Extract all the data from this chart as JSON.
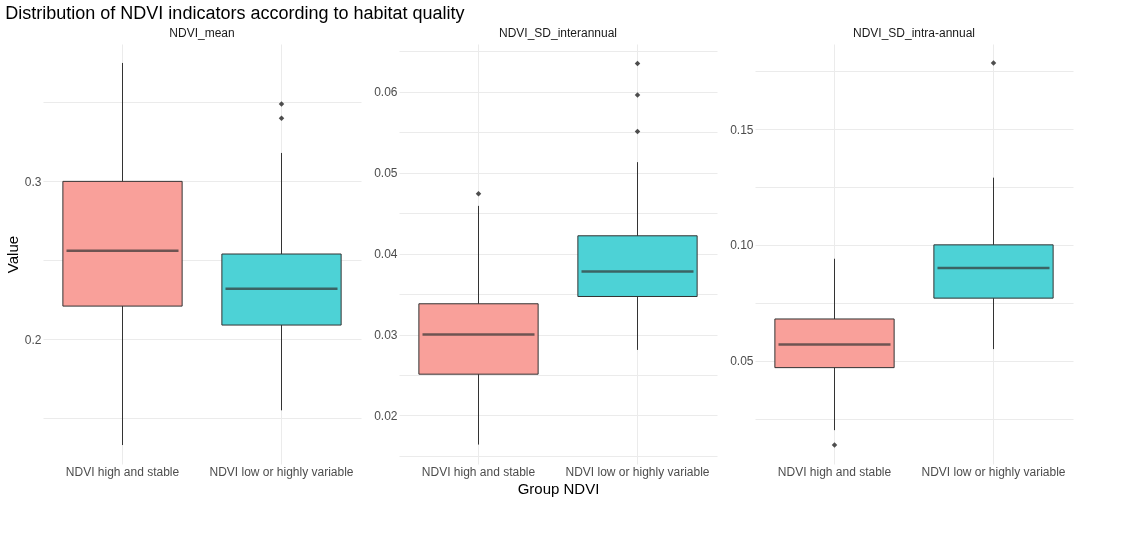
{
  "chart_data": [
    {
      "type": "box",
      "title": "Distribution of NDVI indicators according to habitat quality",
      "subtitle": "NDVI_mean",
      "ylabel": "Value",
      "categories": [
        "NDVI high and stable",
        "NDVI low or highly variable"
      ],
      "colors": [
        "#f9a09a",
        "#4dd2d6"
      ],
      "boxes": [
        {
          "low": 0.133,
          "q1": 0.221,
          "median": 0.256,
          "q3": 0.3,
          "high": 0.375
        },
        {
          "low": 0.155,
          "q1": 0.209,
          "median": 0.232,
          "q3": 0.254,
          "high": 0.318,
          "outliers": [
            0.349,
            0.34
          ]
        }
      ],
      "ylim": [
        0.121,
        0.387
      ],
      "yticks": [
        {
          "value": 0.15,
          "label": null
        },
        0.2,
        {
          "value": 0.25,
          "label": null
        },
        0.3,
        {
          "value": 0.35,
          "label": null
        }
      ],
      "grid": true
    },
    {
      "type": "box",
      "subtitle": "NDVI_SD_interannual",
      "xlabel": "Group NDVI",
      "categories": [
        "NDVI high and stable",
        "NDVI low or highly variable"
      ],
      "colors": [
        "#f9a09a",
        "#4dd2d6"
      ],
      "boxes": [
        {
          "low": 0.0164,
          "q1": 0.0251,
          "median": 0.03,
          "q3": 0.0338,
          "high": 0.0459,
          "outliers": [
            0.0474
          ]
        },
        {
          "low": 0.0281,
          "q1": 0.0347,
          "median": 0.0378,
          "q3": 0.0422,
          "high": 0.0513,
          "outliers": [
            0.0635,
            0.0596,
            0.0551
          ]
        }
      ],
      "ylim": [
        0.014,
        0.0659
      ],
      "yticks": [
        {
          "value": 0.015,
          "label": null
        },
        0.02,
        {
          "value": 0.025,
          "label": null
        },
        0.03,
        {
          "value": 0.035,
          "label": null
        },
        0.04,
        {
          "value": 0.045,
          "label": null
        },
        0.05,
        {
          "value": 0.055,
          "label": null
        },
        0.06,
        {
          "value": 0.065,
          "label": null
        }
      ],
      "grid": true
    },
    {
      "type": "box",
      "subtitle": "NDVI_SD_intra-annual",
      "categories": [
        "NDVI high and stable",
        "NDVI low or highly variable"
      ],
      "colors": [
        "#f9a09a",
        "#4dd2d6"
      ],
      "boxes": [
        {
          "low": 0.02,
          "q1": 0.047,
          "median": 0.057,
          "q3": 0.068,
          "high": 0.094,
          "outliers": [
            0.0136
          ]
        },
        {
          "low": 0.055,
          "q1": 0.077,
          "median": 0.09,
          "q3": 0.1,
          "high": 0.129,
          "outliers": [
            0.1785
          ]
        }
      ],
      "ylim": [
        0.0054,
        0.1867
      ],
      "yticks": [
        {
          "value": 0.025,
          "label": null
        },
        0.05,
        {
          "value": 0.075,
          "label": null
        },
        {
          "value": 0.1,
          "label": "0.10"
        },
        {
          "value": 0.125,
          "label": null
        },
        0.15,
        {
          "value": 0.175,
          "label": null
        }
      ],
      "grid": true
    }
  ]
}
